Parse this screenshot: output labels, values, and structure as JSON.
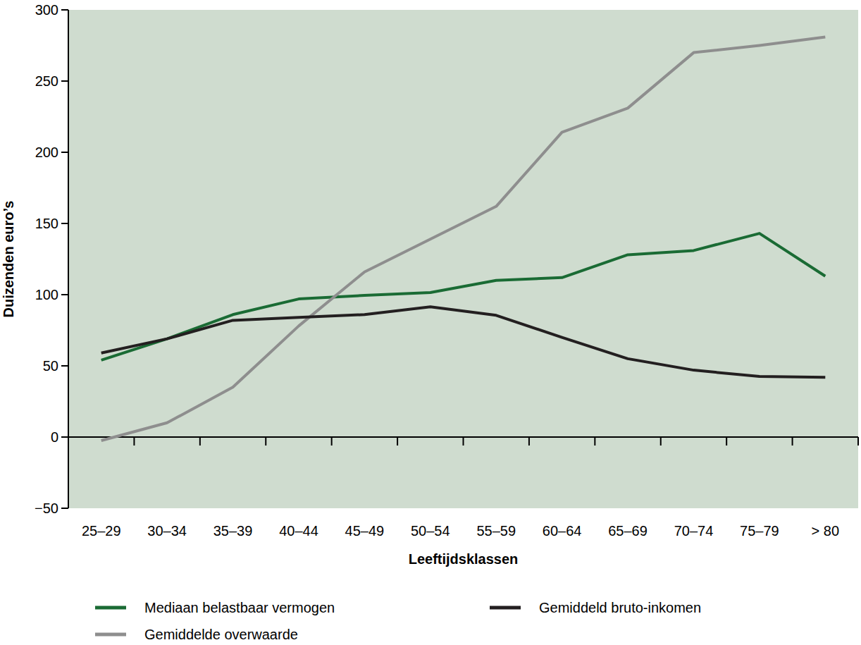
{
  "chart_data": {
    "type": "line",
    "x_label": "Leeftijdsklassen",
    "y_label": "Duizenden euro’s",
    "categories": [
      "25–29",
      "30–34",
      "35–39",
      "40–44",
      "45–49",
      "50–54",
      "55–59",
      "60–64",
      "65–69",
      "70–74",
      "75–79",
      "> 80"
    ],
    "series": [
      {
        "name": "Mediaan belastbaar vermogen",
        "color": "#1a6b34",
        "values": [
          54,
          69,
          86,
          97,
          99.5,
          101.5,
          110,
          112,
          128,
          131,
          143,
          113
        ]
      },
      {
        "name": "Gemiddelde overwaarde",
        "color": "#8e8e8e",
        "values": [
          -2.5,
          10,
          35,
          78,
          116,
          139,
          162,
          214,
          231,
          270,
          275,
          281
        ]
      },
      {
        "name": "Gemiddeld bruto-inkomen",
        "color": "#231f20",
        "values": [
          59,
          69,
          82,
          84,
          86,
          91.5,
          85.5,
          70,
          55,
          47,
          42.5,
          42
        ]
      }
    ],
    "ylim": [
      -50,
      300
    ],
    "yticks": [
      -50,
      0,
      50,
      100,
      150,
      200,
      250,
      300
    ],
    "grid": false,
    "legend": "bottom"
  }
}
